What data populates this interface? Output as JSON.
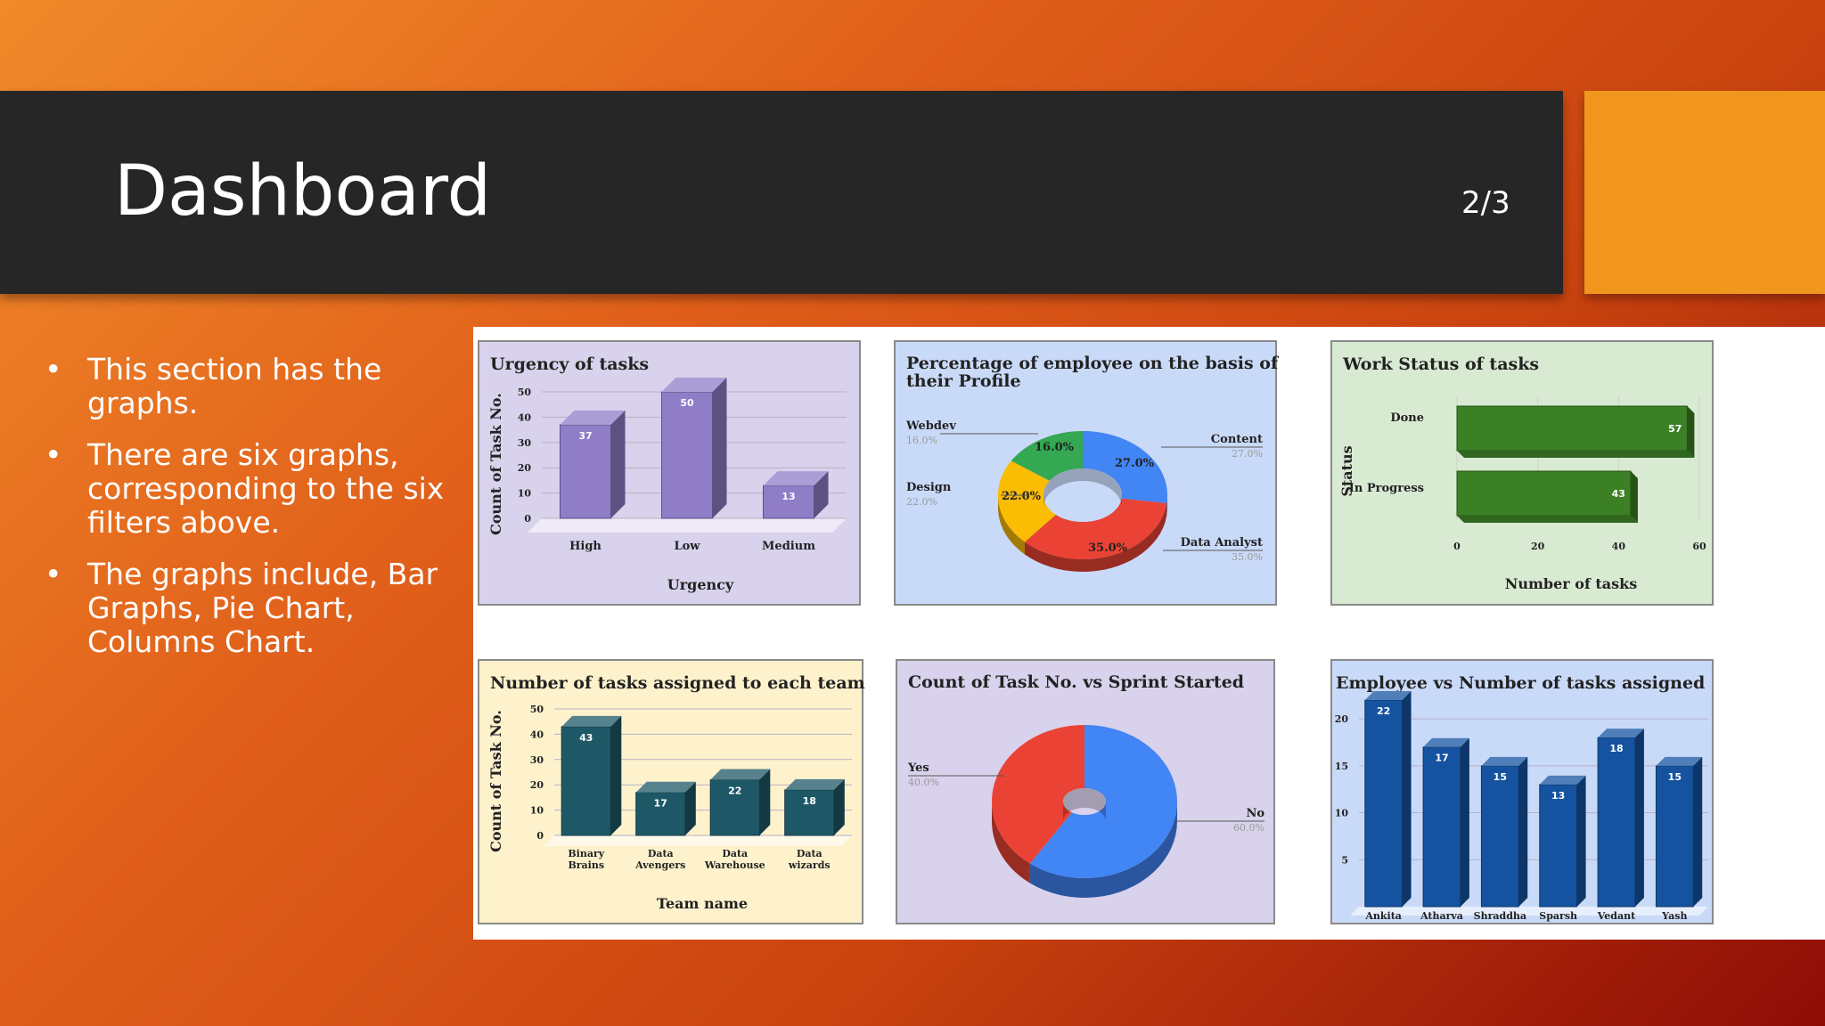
{
  "slide": {
    "title": "Dashboard",
    "page": "2/3",
    "bullets": [
      "This section has the graphs.",
      "There are six graphs, corresponding to the six filters above.",
      "The graphs include, Bar Graphs, Pie Chart, Columns Chart."
    ]
  },
  "colors": {
    "title_bar": "#262626",
    "accent": "#f0961c"
  },
  "chart_data": [
    {
      "type": "bar",
      "title": "Urgency of tasks",
      "xlabel": "Urgency",
      "ylabel": "Count of Task No.",
      "categories": [
        "High",
        "Low",
        "Medium"
      ],
      "values": [
        37,
        50,
        13
      ],
      "yticks": [
        0,
        10,
        20,
        30,
        40,
        50
      ],
      "ylim": [
        0,
        50
      ],
      "bg": "#d9d2ec",
      "bar_color": "#8f7dc8"
    },
    {
      "type": "pie",
      "title": "Percentage of employee on the basis of their Profile",
      "donut": true,
      "slices": [
        {
          "name": "Content",
          "value": 27.0,
          "label": "27.0%",
          "color": "#4285f4"
        },
        {
          "name": "Data Analyst",
          "value": 35.0,
          "label": "35.0%",
          "color": "#ea4335"
        },
        {
          "name": "Design",
          "value": 22.0,
          "label": "22.0%",
          "color": "#fbbc04"
        },
        {
          "name": "Webdev",
          "value": 16.0,
          "label": "16.0%",
          "color": "#34a853"
        }
      ],
      "bg": "#c9daf8"
    },
    {
      "type": "bar",
      "orientation": "horizontal",
      "title": "Work Status of tasks",
      "xlabel": "Number of tasks",
      "ylabel": "Status",
      "categories": [
        "Done",
        "In Progress"
      ],
      "values": [
        57,
        43
      ],
      "xticks": [
        0,
        20,
        40,
        60
      ],
      "xlim": [
        0,
        60
      ],
      "bg": "#d9ead3",
      "bar_color": "#3c8025"
    },
    {
      "type": "bar",
      "title": "Number of tasks assigned to each team",
      "xlabel": "Team name",
      "ylabel": "Count of Task No.",
      "categories": [
        [
          "Binary",
          "Brains"
        ],
        [
          "Data",
          "Avengers"
        ],
        [
          "Data",
          "Warehouse"
        ],
        [
          "Data",
          "wizards"
        ]
      ],
      "values": [
        43,
        17,
        22,
        18
      ],
      "yticks": [
        0,
        10,
        20,
        30,
        40,
        50
      ],
      "ylim": [
        0,
        50
      ],
      "bg": "#fdf2cc",
      "bar_color": "#1e5867"
    },
    {
      "type": "pie",
      "title": "Count of Task No. vs Sprint Started",
      "donut": true,
      "slices": [
        {
          "name": "No",
          "value": 60.0,
          "label": "60.0%",
          "color": "#4285f4"
        },
        {
          "name": "Yes",
          "value": 40.0,
          "label": "40.0%",
          "color": "#ea4335"
        }
      ],
      "bg": "#d9d2ec"
    },
    {
      "type": "bar",
      "title": "Employee vs Number of tasks assigned",
      "categories": [
        "Ankita",
        "Atharva",
        "Shraddha",
        "Sparsh",
        "Vedant",
        "Yash"
      ],
      "values": [
        22,
        17,
        15,
        13,
        18,
        15
      ],
      "yticks": [
        5,
        10,
        15,
        20
      ],
      "ylim": [
        0,
        22
      ],
      "bg": "#c9daf8",
      "bar_color": "#1553a0"
    }
  ]
}
